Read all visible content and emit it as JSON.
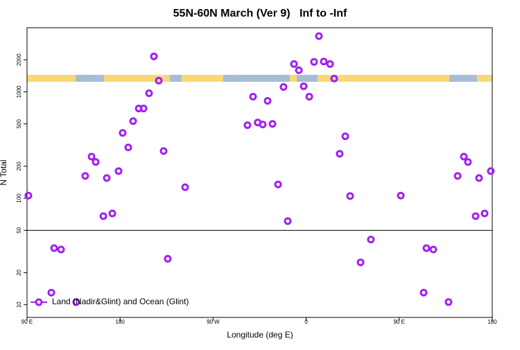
{
  "chart_data": {
    "type": "scatter",
    "title": "55N-60N March (Ver 9)   Inf to -Inf",
    "xlabel": "Longitude (deg E)",
    "ylabel": "N Total",
    "ylog": true,
    "panel_split": 50,
    "legend": "bottom-left",
    "xlim": [
      90,
      540
    ],
    "xticks": [
      {
        "value": 90,
        "label": "90 E"
      },
      180,
      {
        "value": 270,
        "label": "90 W"
      },
      {
        "value": 360,
        "label": "0"
      },
      {
        "value": 450,
        "label": "90 E"
      },
      {
        "value": 540,
        "label": "180"
      }
    ],
    "ylim": [
      7.6,
      4000
    ],
    "yticks": [
      10,
      20,
      50,
      100,
      200,
      500,
      1000,
      2000
    ],
    "series": [
      {
        "name": "Land (Nadir&Glint) and Ocean (Glint)",
        "color": "#a020f0",
        "x": [
          91.3,
          113.5,
          116.2,
          122.9,
          137.6,
          146.3,
          152.4,
          156.4,
          163.8,
          167.1,
          172.5,
          178.5,
          182.5,
          187.9,
          192.6,
          198.0,
          202.7,
          208.0,
          212.7,
          217.4,
          222.1,
          226.1,
          242.9,
          303.2,
          308.6,
          313.1,
          318.0,
          322.7,
          327.4,
          332.8,
          338.1,
          342.2,
          348.2,
          352.9,
          357.6,
          363.0,
          367.6,
          372.3,
          377.0,
          383.1,
          387.1,
          392.4,
          397.8,
          402.5,
          412.6,
          422.6,
          451.5,
          473.6,
          476.3,
          483.0,
          497.7,
          506.5,
          512.5,
          516.5,
          523.9,
          527.2,
          532.6,
          538.6
        ],
        "values": [
          106,
          13,
          34,
          33,
          10.6,
          162,
          246,
          219,
          68,
          155,
          72,
          180,
          411,
          300,
          531,
          697,
          697,
          970,
          2150,
          1273,
          278,
          27,
          127,
          486,
          900,
          515,
          493,
          823,
          500,
          135,
          1110,
          61,
          1825,
          1595,
          1128,
          900,
          1910,
          3335,
          1926,
          1825,
          1331,
          262,
          382,
          105,
          25,
          41,
          106,
          13,
          34,
          33,
          10.6,
          162,
          246,
          219,
          68,
          155,
          72,
          180
        ]
      }
    ]
  }
}
